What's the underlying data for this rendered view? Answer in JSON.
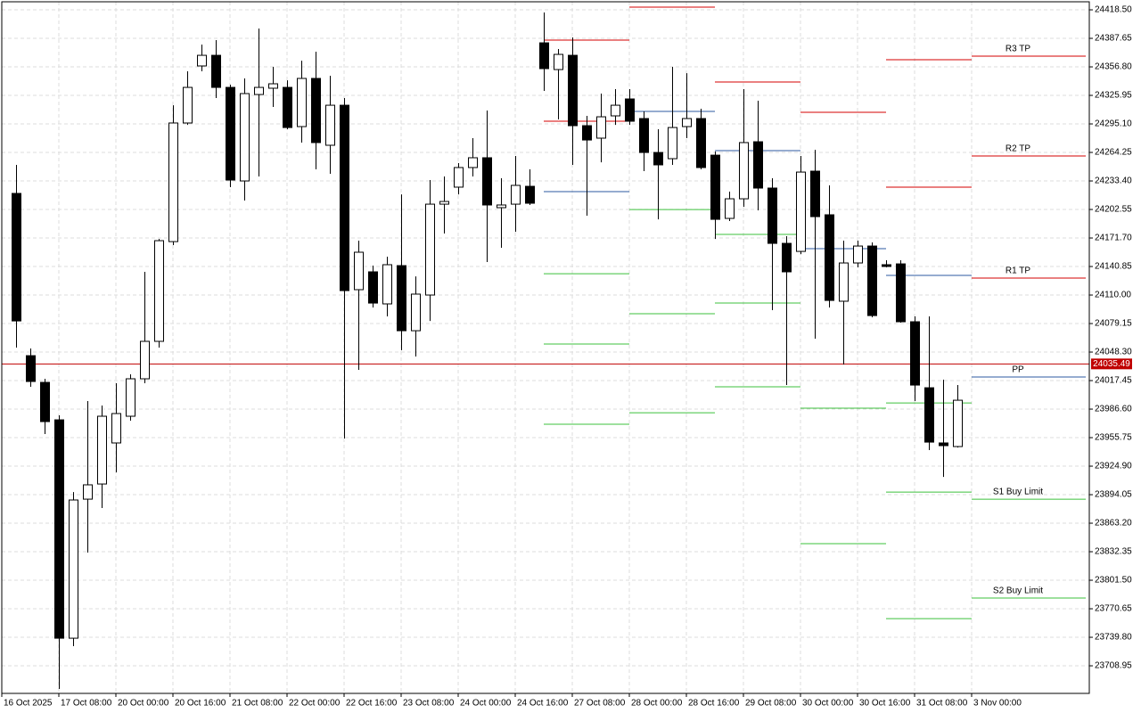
{
  "chart_data": {
    "type": "candlestick",
    "up_color": "#ffffff",
    "down_color": "#000000",
    "xlim": [
      -1,
      75.25
    ],
    "ylim": [
      23679.1,
      24427.2
    ],
    "grid": true,
    "xticks": [
      {
        "value": -1,
        "label": "16 Oct 2025"
      },
      {
        "value": 3,
        "label": "17 Oct 08:00"
      },
      {
        "value": 7,
        "label": "20 Oct 00:00"
      },
      {
        "value": 11,
        "label": "20 Oct 16:00"
      },
      {
        "value": 15,
        "label": "21 Oct 08:00"
      },
      {
        "value": 19,
        "label": "22 Oct 00:00"
      },
      {
        "value": 23,
        "label": "22 Oct 16:00"
      },
      {
        "value": 27,
        "label": "23 Oct 08:00"
      },
      {
        "value": 31,
        "label": "24 Oct 00:00"
      },
      {
        "value": 35,
        "label": "24 Oct 16:00"
      },
      {
        "value": 39,
        "label": "27 Oct 08:00"
      },
      {
        "value": 43,
        "label": "28 Oct 00:00"
      },
      {
        "value": 47,
        "label": "28 Oct 16:00"
      },
      {
        "value": 51,
        "label": "29 Oct 08:00"
      },
      {
        "value": 55,
        "label": "30 Oct 00:00"
      },
      {
        "value": 59,
        "label": "30 Oct 16:00"
      },
      {
        "value": 63,
        "label": "31 Oct 08:00"
      },
      {
        "value": 67,
        "label": "3 Nov 00:00"
      }
    ],
    "yticks": [
      {
        "value": 24418.5,
        "label": "24418.50"
      },
      {
        "value": 24387.65,
        "label": "24387.65"
      },
      {
        "value": 24356.8,
        "label": "24356.80"
      },
      {
        "value": 24325.95,
        "label": "24325.95"
      },
      {
        "value": 24295.1,
        "label": "24295.10"
      },
      {
        "value": 24264.25,
        "label": "24264.25"
      },
      {
        "value": 24233.4,
        "label": "24233.40"
      },
      {
        "value": 24202.55,
        "label": "24202.55"
      },
      {
        "value": 24171.7,
        "label": "24171.70"
      },
      {
        "value": 24140.85,
        "label": "24140.85"
      },
      {
        "value": 24110,
        "label": "24110.00"
      },
      {
        "value": 24079.15,
        "label": "24079.15"
      },
      {
        "value": 24048.3,
        "label": "24048.30"
      },
      {
        "value": 24017.45,
        "label": "24017.45"
      },
      {
        "value": 23986.6,
        "label": "23986.60"
      },
      {
        "value": 23955.75,
        "label": "23955.75"
      },
      {
        "value": 23924.9,
        "label": "23924.90"
      },
      {
        "value": 23894.05,
        "label": "23894.05"
      },
      {
        "value": 23863.2,
        "label": "23863.20"
      },
      {
        "value": 23832.35,
        "label": "23832.35"
      },
      {
        "value": 23801.5,
        "label": "23801.50"
      },
      {
        "value": 23770.65,
        "label": "23770.65"
      },
      {
        "value": 23739.8,
        "label": "23739.80"
      },
      {
        "value": 23708.95,
        "label": "23708.95"
      }
    ],
    "open": [
      24219.9,
      24044.4,
      24015.5,
      23975.0,
      23738.8,
      23889.2,
      23905.6,
      23950.0,
      23978.9,
      24019.4,
      24059.9,
      24167.8,
      24296.1,
      24357.8,
      24369.3,
      24334.6,
      24233.4,
      24326.9,
      24333.7,
      24334.6,
      24292.2,
      24344.3,
      24272.0,
      24315.3,
      24115.8,
      24135.1,
      24100.4,
      24141.8,
      24071.4,
      24110.0,
      24208.3,
      24226.7,
      24247.9,
      24258.5,
      24204.5,
      24208.3,
      24227.6,
      24382.8,
      24353.9,
      24369.3,
      24293.2,
      24279.7,
      24303.8,
      24322.1,
      24300.9,
      24264.2,
      24257.5,
      24292.2,
      24300.9,
      24261.3,
      24192.9,
      24214.1,
      24275.8,
      24225.7,
      24165.9,
      24157.2,
      24244.0,
      24196.8,
      24103.3,
      24144.7,
      24163.0,
      24142.8,
      24143.7,
      24081.1,
      24009.7,
      23950.0,
      23946.1
    ],
    "high": [
      24250.8,
      24052.2,
      24019.4,
      23979.9,
      23896.9,
      23995.3,
      23990.5,
      24014.6,
      24024.2,
      24135.1,
      24170.7,
      24315.3,
      24352.0,
      24380.9,
      24385.7,
      24337.5,
      24344.3,
      24398.3,
      24356.8,
      24342.3,
      24363.5,
      24373.2,
      24347.2,
      24323.1,
      24168.8,
      24141.8,
      24151.5,
      24218.9,
      24130.2,
      24234.4,
      24238.2,
      24252.7,
      24279.7,
      24309.6,
      24236.3,
      24260.4,
      24245.9,
      24415.6,
      24376.1,
      24388.6,
      24303.8,
      24327.9,
      24332.7,
      24332.7,
      24308.6,
      24289.3,
      24356.8,
      24350.0,
      24311.5,
      24265.2,
      24221.8,
      24332.7,
      24320.2,
      24236.3,
      24173.6,
      24260.4,
      24267.1,
      24228.6,
      24168.8,
      24168.8,
      24166.9,
      24147.6,
      24147.6,
      24086.9,
      24086.9,
      24018.4,
      24012.6
    ],
    "low": [
      24053.1,
      24010.7,
      23959.6,
      23683.9,
      23730.2,
      23831.4,
      23879.6,
      23918.2,
      23974.1,
      24014.6,
      24053.1,
      24164.0,
      24294.1,
      24352.0,
      24323.1,
      24226.7,
      24212.2,
      24238.2,
      24313.4,
      24289.3,
      24274.9,
      24245.9,
      24241.1,
      23954.8,
      24029.0,
      24096.5,
      24086.9,
      24050.2,
      24043.5,
      24082.0,
      24176.5,
      24218.9,
      24238.2,
      24145.7,
      24161.1,
      24178.4,
      24207.4,
      24330.8,
      24299.9,
      24250.8,
      24195.8,
      24253.6,
      24294.1,
      24294.1,
      24244.0,
      24191.9,
      24250.8,
      24279.7,
      24245.9,
      24170.7,
      24190.0,
      24205.4,
      24201.6,
      24093.6,
      24012.6,
      24154.3,
      24062.8,
      24096.5,
      24034.8,
      24139.9,
      24085.9,
      24139.9,
      24080.1,
      23995.3,
      23942.3,
      23913.3,
      23945.1
    ],
    "close": [
      24082.0,
      24016.5,
      23973.1,
      23738.8,
      23888.3,
      23904.7,
      23978.9,
      23981.8,
      24019.4,
      24059.9,
      24168.8,
      24296.1,
      24334.6,
      24369.3,
      24334.6,
      24234.4,
      24327.9,
      24334.6,
      24338.5,
      24291.2,
      24344.3,
      24274.9,
      24315.3,
      24114.8,
      24156.3,
      24101.3,
      24142.8,
      24071.4,
      24111.0,
      24208.3,
      24211.2,
      24247.9,
      24258.5,
      24207.4,
      24207.4,
      24228.6,
      24209.3,
      24354.9,
      24370.3,
      24293.2,
      24277.7,
      24302.8,
      24315.3,
      24298.0,
      24264.2,
      24250.8,
      24291.2,
      24300.9,
      24247.9,
      24191.9,
      24214.1,
      24274.9,
      24225.7,
      24165.9,
      24135.1,
      24243.0,
      24194.8,
      24104.2,
      24144.7,
      24163.0,
      24087.8,
      24140.9,
      24081.1,
      24012.6,
      23950.9,
      23947.1,
      23996.2
    ],
    "current_price": {
      "value": 24035.49,
      "color": "#c00000"
    },
    "pivots": [
      {
        "from": 37,
        "to": 43,
        "lines": [
          {
            "value": 24385.7,
            "color": "#d40000"
          },
          {
            "value": 24298.0,
            "color": "#d40000"
          },
          {
            "value": 24221.8,
            "color": "#2c5aa0"
          },
          {
            "value": 24133.1,
            "color": "#3cc03c"
          },
          {
            "value": 24057.0,
            "color": "#3cc03c"
          },
          {
            "value": 23970.2,
            "color": "#3cc03c"
          }
        ]
      },
      {
        "from": 43,
        "to": 49,
        "lines": [
          {
            "value": 24421.4,
            "color": "#d40000"
          },
          {
            "value": 24308.6,
            "color": "#2c5aa0"
          },
          {
            "value": 24202.5,
            "color": "#3cc03c"
          },
          {
            "value": 24089.8,
            "color": "#3cc03c"
          },
          {
            "value": 23982.7,
            "color": "#3cc03c"
          }
        ]
      },
      {
        "from": 49,
        "to": 55,
        "lines": [
          {
            "value": 24340.4,
            "color": "#d40000"
          },
          {
            "value": 24266.2,
            "color": "#2c5aa0"
          },
          {
            "value": 24175.6,
            "color": "#3cc03c"
          },
          {
            "value": 24101.3,
            "color": "#3cc03c"
          },
          {
            "value": 24010.7,
            "color": "#3cc03c"
          }
        ]
      },
      {
        "from": 55,
        "to": 61,
        "lines": [
          {
            "value": 24307.6,
            "color": "#d40000"
          },
          {
            "value": 24160.1,
            "color": "#2c5aa0"
          },
          {
            "value": 23987.6,
            "color": "#3cc03c"
          },
          {
            "value": 23841.0,
            "color": "#3cc03c"
          }
        ]
      },
      {
        "from": 61,
        "to": 67,
        "lines": [
          {
            "value": 24364.5,
            "color": "#d40000"
          },
          {
            "value": 24226.7,
            "color": "#d40000"
          },
          {
            "value": 24131.2,
            "color": "#2c5aa0"
          },
          {
            "value": 23993.3,
            "color": "#3cc03c"
          },
          {
            "value": 23896.9,
            "color": "#3cc03c"
          },
          {
            "value": 23760.0,
            "color": "#3cc03c"
          }
        ]
      },
      {
        "from": 67,
        "to": 75,
        "lines": [
          {
            "name": "R3 TP",
            "value": 24368.4,
            "color": "#d40000"
          },
          {
            "name": "R2 TP",
            "value": 24260.4,
            "color": "#d40000"
          },
          {
            "name": "R1 TP",
            "value": 24128.3,
            "color": "#d40000"
          },
          {
            "name": "PP",
            "value": 24021.3,
            "color": "#2c5aa0"
          },
          {
            "name": "S1 Buy Limit",
            "value": 23889.2,
            "color": "#3cc03c"
          },
          {
            "name": "S2 Buy Limit",
            "value": 23782.2,
            "color": "#3cc03c"
          }
        ]
      }
    ]
  }
}
